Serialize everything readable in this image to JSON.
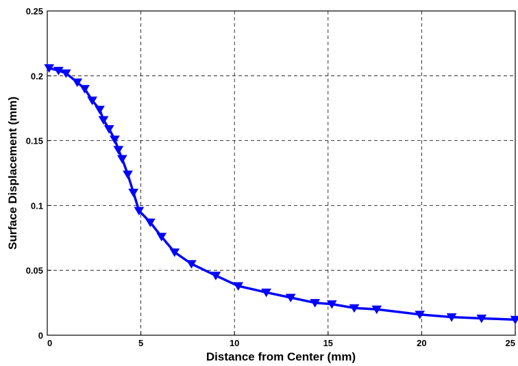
{
  "chart_data": {
    "type": "line",
    "title": "",
    "xlabel": "Distance from Center (mm)",
    "ylabel": "Surface Displacement (mm)",
    "xlim": [
      0,
      25
    ],
    "ylim": [
      0,
      0.25
    ],
    "xticks": [
      0,
      5,
      10,
      15,
      20,
      25
    ],
    "xtick_labels": [
      "0",
      "5",
      "10",
      "15",
      "20",
      "25"
    ],
    "yticks": [
      0,
      0.05,
      0.1,
      0.15,
      0.2,
      0.25
    ],
    "ytick_labels": [
      "0",
      "0.05",
      "0.1",
      "0.15",
      "0.2",
      "0.25"
    ],
    "grid": true,
    "series": [
      {
        "color": "#0000ff",
        "marker": "triangle-down",
        "x": [
          0.1,
          0.6,
          1.0,
          1.6,
          2.0,
          2.4,
          2.8,
          3.0,
          3.3,
          3.6,
          3.8,
          4.0,
          4.3,
          4.6,
          4.9,
          5.5,
          6.1,
          6.8,
          7.7,
          9.0,
          10.2,
          11.7,
          13.0,
          14.3,
          15.2,
          16.4,
          17.6,
          19.9,
          21.6,
          23.2,
          25.0
        ],
        "y": [
          0.206,
          0.204,
          0.202,
          0.195,
          0.19,
          0.181,
          0.174,
          0.166,
          0.159,
          0.151,
          0.143,
          0.136,
          0.124,
          0.11,
          0.096,
          0.087,
          0.076,
          0.064,
          0.055,
          0.046,
          0.038,
          0.033,
          0.029,
          0.025,
          0.024,
          0.021,
          0.02,
          0.016,
          0.014,
          0.013,
          0.012
        ]
      }
    ]
  }
}
